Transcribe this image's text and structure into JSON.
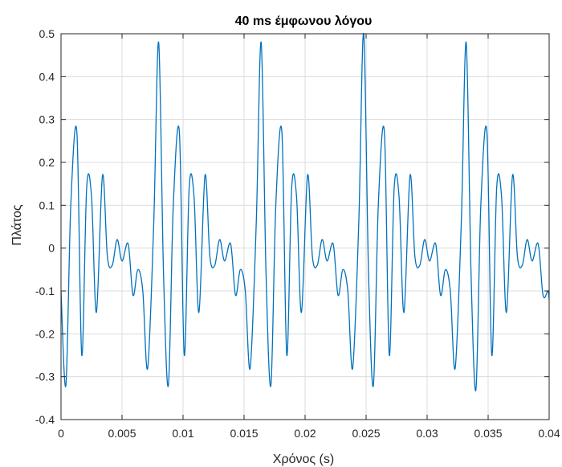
{
  "chart_data": {
    "type": "line",
    "title": "40 ms έμφωνου λόγου",
    "xlabel": "Χρόνος (s)",
    "ylabel": "Πλάτος",
    "xlim": [
      0,
      0.04
    ],
    "ylim": [
      -0.4,
      0.5
    ],
    "xticks": [
      0,
      0.005,
      0.01,
      0.015,
      0.02,
      0.025,
      0.03,
      0.035,
      0.04
    ],
    "xtick_labels": [
      "0",
      "0.005",
      "0.01",
      "0.015",
      "0.02",
      "0.025",
      "0.03",
      "0.035",
      "0.04"
    ],
    "yticks": [
      -0.4,
      -0.3,
      -0.2,
      -0.1,
      0,
      0.1,
      0.2,
      0.3,
      0.4,
      0.5
    ],
    "ytick_labels": [
      "-0.4",
      "-0.3",
      "-0.2",
      "-0.1",
      "0",
      "0.1",
      "0.2",
      "0.3",
      "0.4",
      "0.5"
    ],
    "grid": true,
    "series_color": "#0072BD",
    "series": [
      {
        "x": [
          0,
          0.0004,
          0.0008,
          0.0013,
          0.0017,
          0.0021,
          0.0025,
          0.0029,
          0.0034,
          0.0038,
          0.0042,
          0.0046,
          0.005,
          0.0055,
          0.0059,
          0.0063,
          0.0067,
          0.0071,
          0.0076,
          0.008,
          0.0084,
          0.0088,
          0.0092,
          0.0097,
          0.0101,
          0.0105,
          0.0109,
          0.0113,
          0.0118,
          0.0122,
          0.0126,
          0.013,
          0.0134,
          0.0139,
          0.0143,
          0.0147,
          0.0151,
          0.0155,
          0.016,
          0.0164,
          0.0168,
          0.0172,
          0.0176,
          0.0181,
          0.0185,
          0.0189,
          0.0193,
          0.0197,
          0.0202,
          0.0206,
          0.021,
          0.0214,
          0.0218,
          0.0223,
          0.0227,
          0.0231,
          0.0235,
          0.0239,
          0.0244,
          0.0248,
          0.0252,
          0.0256,
          0.026,
          0.0265,
          0.0269,
          0.0273,
          0.0277,
          0.0281,
          0.0286,
          0.029,
          0.0294,
          0.0298,
          0.0302,
          0.0307,
          0.0311,
          0.0315,
          0.0319,
          0.0323,
          0.0328,
          0.0332,
          0.0336,
          0.034,
          0.0344,
          0.0349,
          0.0353,
          0.0357,
          0.0361,
          0.0365,
          0.037,
          0.0374,
          0.0378,
          0.0382,
          0.0386,
          0.0391,
          0.0395,
          0.0399,
          0.04
        ],
        "y": [
          -0.1,
          -0.32,
          0.1,
          0.27,
          -0.25,
          0.14,
          0.12,
          -0.15,
          0.17,
          -0.02,
          -0.04,
          0.02,
          -0.03,
          0.01,
          -0.11,
          -0.05,
          -0.1,
          -0.28,
          0.06,
          0.48,
          -0.06,
          -0.32,
          0.1,
          0.27,
          -0.25,
          0.14,
          0.12,
          -0.15,
          0.17,
          -0.02,
          -0.04,
          0.02,
          -0.03,
          0.01,
          -0.11,
          -0.05,
          -0.1,
          -0.28,
          0.06,
          0.48,
          -0.06,
          -0.32,
          0.1,
          0.27,
          -0.25,
          0.14,
          0.12,
          -0.15,
          0.17,
          -0.02,
          -0.04,
          0.02,
          -0.03,
          0.01,
          -0.11,
          -0.05,
          -0.1,
          -0.28,
          0.06,
          0.5,
          -0.06,
          -0.32,
          0.1,
          0.27,
          -0.25,
          0.14,
          0.12,
          -0.15,
          0.17,
          -0.02,
          -0.04,
          0.02,
          -0.03,
          0.01,
          -0.11,
          -0.05,
          -0.1,
          -0.28,
          0.06,
          0.48,
          -0.06,
          -0.33,
          0.1,
          0.27,
          -0.25,
          0.14,
          0.12,
          -0.15,
          0.17,
          -0.02,
          -0.04,
          0.02,
          -0.03,
          0.01,
          -0.11,
          -0.1,
          -0.12
        ]
      }
    ]
  }
}
